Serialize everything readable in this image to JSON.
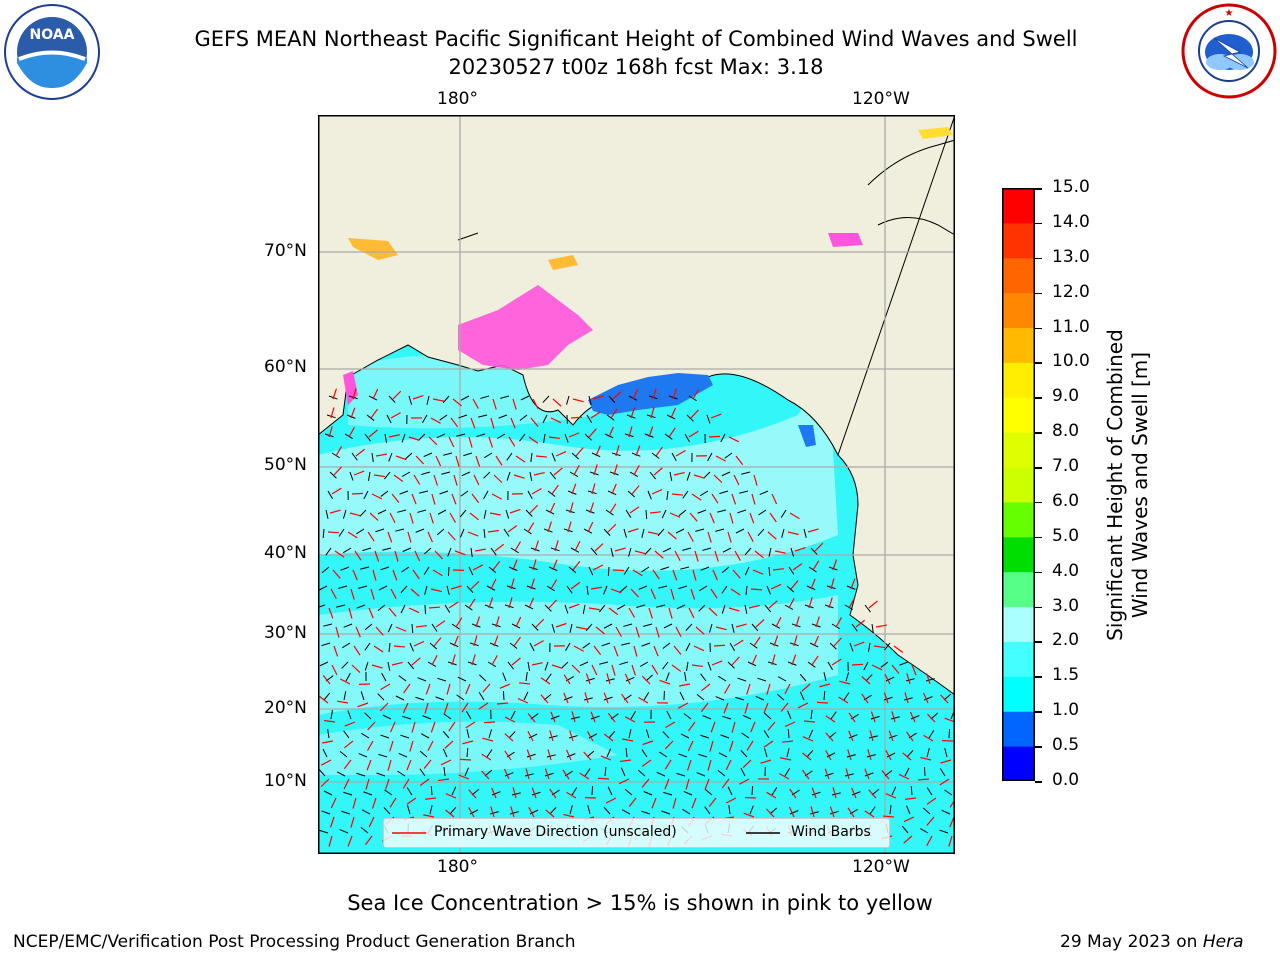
{
  "title_line1": "GEFS MEAN Northeast Pacific Significant Height of Combined Wind Waves and Swell",
  "title_line2": "20230527 t00z 168h fcst   Max: 3.18",
  "logo_left_text": "NOAA",
  "logo_left_ring_text": "NATIONAL OCEANIC AND ATMOSPHERIC ADMINISTRATION · U.S. DEPARTMENT OF COMMERCE",
  "logo_right_ring_text": "NATIONAL WEATHER SERVICE",
  "lon_ticks": [
    "180°",
    "120°W"
  ],
  "lat_ticks": [
    "70°N",
    "60°N",
    "50°N",
    "40°N",
    "30°N",
    "20°N",
    "10°N"
  ],
  "colorbar": {
    "ticks": [
      "15.0",
      "14.0",
      "13.0",
      "12.0",
      "11.0",
      "10.0",
      "9.0",
      "8.0",
      "7.0",
      "6.0",
      "5.0",
      "4.0",
      "3.0",
      "2.0",
      "1.5",
      "1.0",
      "0.5",
      "0.0"
    ],
    "colors": [
      "#0000ff",
      "#0066ff",
      "#00ffff",
      "#44ffff",
      "#aaffff",
      "#55ff88",
      "#00dd00",
      "#66ff00",
      "#ccff00",
      "#ddff00",
      "#ffff00",
      "#ffee00",
      "#ffbb00",
      "#ff8800",
      "#ff6600",
      "#ff3300",
      "#ff0000"
    ],
    "label_line1": "Significant Height of Combined",
    "label_line2": "Wind Waves and Swell [m]"
  },
  "legend": {
    "wave_label": "Primary Wave Direction (unscaled)",
    "wind_label": "Wind Barbs",
    "wave_color": "#ff0000",
    "wind_color": "#000000"
  },
  "colors": {
    "land": "#f0eedc",
    "ocean_main": "#33f6f8",
    "ocean_light": "#a8fafa",
    "ocean_deep": "#1e78f0",
    "ice": "#ff55dd"
  },
  "sea_ice_note": "Sea Ice Concentration > 15% is shown in pink to yellow",
  "footer_left": "NCEP/EMC/Verification Post Processing Product Generation Branch",
  "footer_date": "29 May 2023 on ",
  "footer_machine": "Hera"
}
